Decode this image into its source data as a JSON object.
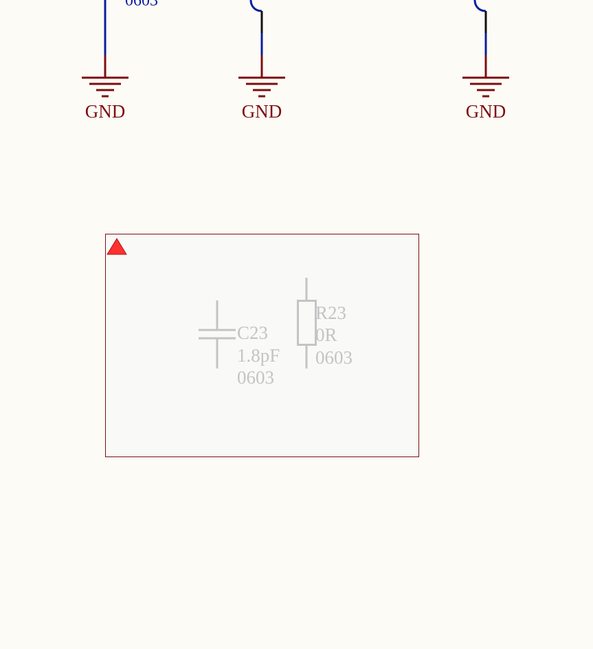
{
  "colors": {
    "background": "#fdfbf6",
    "power_port": "#7b0f0f",
    "wire": "#0b1f9c",
    "wire_segment_dark": "#111111",
    "compile_mask_border": "#7b0f0f",
    "compile_mask_fill": "#f9f9f8",
    "dimmed_component": "#c4c4c4",
    "warning_marker": "#ff3030"
  },
  "top_section": {
    "partial_label": "0603",
    "ground_ports": [
      {
        "net": "GND"
      },
      {
        "net": "GND"
      },
      {
        "net": "GND"
      }
    ]
  },
  "compile_mask": {
    "warning_icon": "warning-triangle-icon",
    "capacitor": {
      "designator": "C23",
      "value": "1.8pF",
      "footprint": "0603"
    },
    "resistor": {
      "designator": "R23",
      "value": "0R",
      "footprint": "0603"
    }
  }
}
